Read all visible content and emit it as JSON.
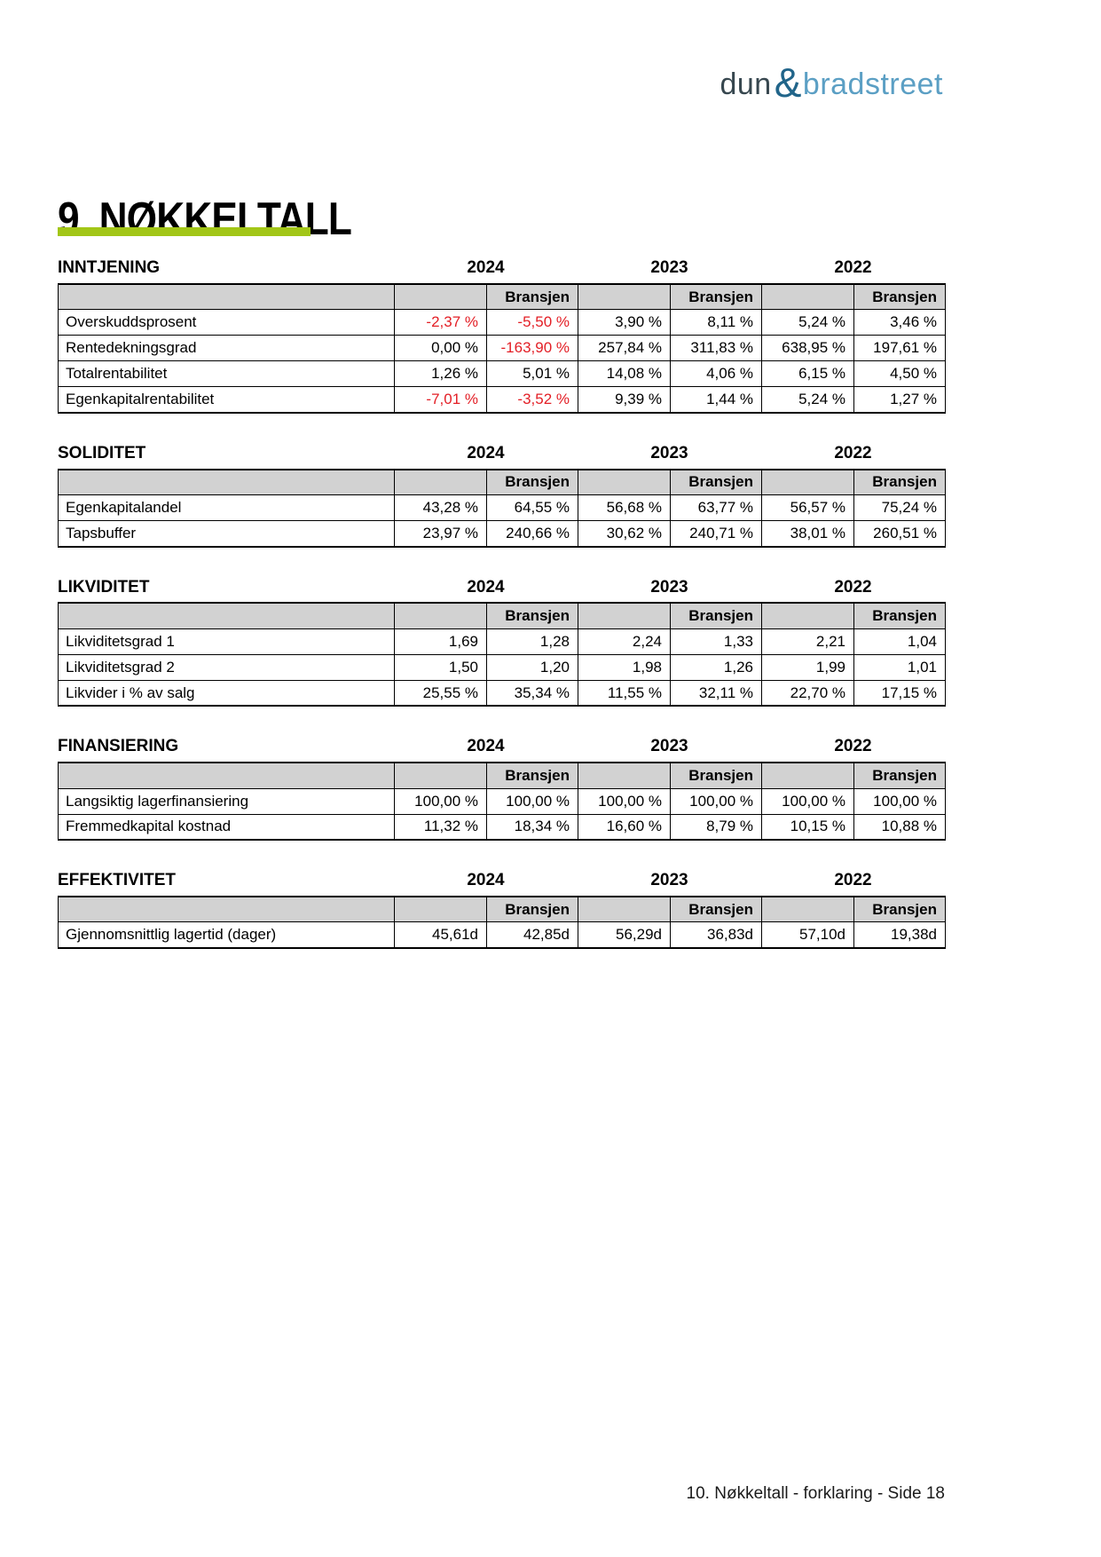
{
  "logo": {
    "word1": "dun",
    "ampersand": "&",
    "word2": "bradstreet"
  },
  "page_title": "9. NØKKELTALL",
  "table_header_label": "Bransjen",
  "years": [
    "2024",
    "2023",
    "2022"
  ],
  "footer_text": "10. Nøkkeltall - forklaring - Side 18",
  "colors": {
    "accent_green": "#A2C617",
    "negative_red": "#E31E25",
    "header_gray": "#D2D2D2",
    "logo_dark": "#37474F",
    "logo_amp": "#21658A",
    "logo_light": "#5B9FC4"
  },
  "sections": [
    {
      "title": "INNTJENING",
      "rows": [
        {
          "label": "Overskuddsprosent",
          "values": [
            "-2,37 %",
            "-5,50 %",
            "3,90 %",
            "8,11 %",
            "5,24 %",
            "3,46 %"
          ]
        },
        {
          "label": "Rentedekningsgrad",
          "values": [
            "0,00 %",
            "-163,90 %",
            "257,84 %",
            "311,83 %",
            "638,95 %",
            "197,61 %"
          ]
        },
        {
          "label": "Totalrentabilitet",
          "values": [
            "1,26 %",
            "5,01 %",
            "14,08 %",
            "4,06 %",
            "6,15 %",
            "4,50 %"
          ]
        },
        {
          "label": "Egenkapitalrentabilitet",
          "values": [
            "-7,01 %",
            "-3,52 %",
            "9,39 %",
            "1,44 %",
            "5,24 %",
            "1,27 %"
          ]
        }
      ]
    },
    {
      "title": "SOLIDITET",
      "rows": [
        {
          "label": "Egenkapitalandel",
          "values": [
            "43,28 %",
            "64,55 %",
            "56,68 %",
            "63,77 %",
            "56,57 %",
            "75,24 %"
          ]
        },
        {
          "label": "Tapsbuffer",
          "values": [
            "23,97 %",
            "240,66 %",
            "30,62 %",
            "240,71 %",
            "38,01 %",
            "260,51 %"
          ]
        }
      ]
    },
    {
      "title": "LIKVIDITET",
      "rows": [
        {
          "label": "Likviditetsgrad 1",
          "values": [
            "1,69",
            "1,28",
            "2,24",
            "1,33",
            "2,21",
            "1,04"
          ]
        },
        {
          "label": "Likviditetsgrad 2",
          "values": [
            "1,50",
            "1,20",
            "1,98",
            "1,26",
            "1,99",
            "1,01"
          ]
        },
        {
          "label": "Likvider i % av salg",
          "values": [
            "25,55 %",
            "35,34 %",
            "11,55 %",
            "32,11 %",
            "22,70 %",
            "17,15 %"
          ]
        }
      ]
    },
    {
      "title": "FINANSIERING",
      "rows": [
        {
          "label": "Langsiktig lagerfinansiering",
          "values": [
            "100,00 %",
            "100,00 %",
            "100,00 %",
            "100,00 %",
            "100,00 %",
            "100,00 %"
          ]
        },
        {
          "label": "Fremmedkapital kostnad",
          "values": [
            "11,32 %",
            "18,34 %",
            "16,60 %",
            "8,79 %",
            "10,15 %",
            "10,88 %"
          ]
        }
      ]
    },
    {
      "title": "EFFEKTIVITET",
      "rows": [
        {
          "label": "Gjennomsnittlig lagertid (dager)",
          "values": [
            "45,61d",
            "42,85d",
            "56,29d",
            "36,83d",
            "57,10d",
            "19,38d"
          ]
        }
      ]
    }
  ]
}
